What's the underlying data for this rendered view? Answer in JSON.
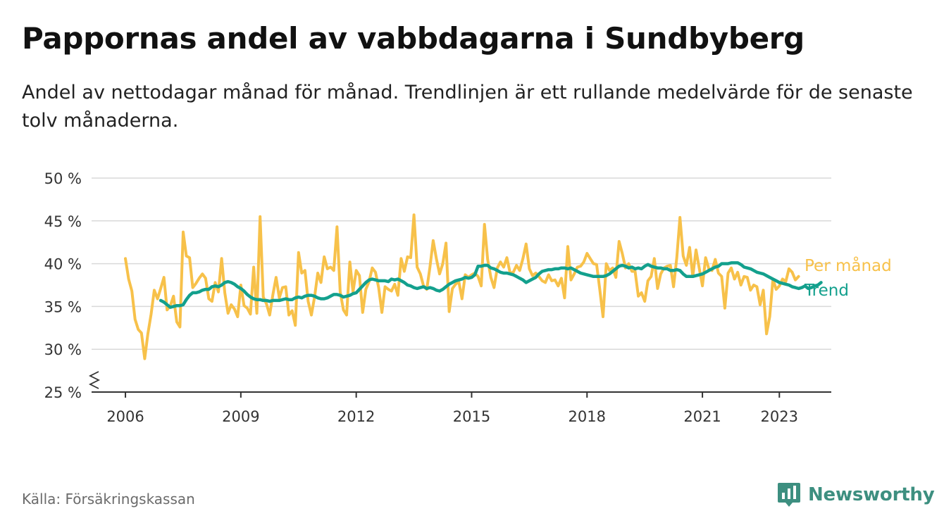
{
  "header": {
    "title": "Pappornas andel av vabbdagarna i Sundbyberg",
    "subtitle": "Andel av nettodagar månad för månad. Trendlinjen är ett rullande medelvärde för de senaste tolv månaderna."
  },
  "footer": {
    "source": "Källa: Försäkringskassan",
    "brand": "Newsworthy",
    "brand_icon": "bar-chart-badge-icon"
  },
  "colors": {
    "monthly": "#f7c14a",
    "trend": "#13a08d",
    "grid": "#d9d9d9",
    "axis": "#333333",
    "brand": "#3d8f80"
  },
  "chart_data": {
    "type": "line",
    "x_unit": "year (decimal, monthly points)",
    "ylim": [
      25,
      50
    ],
    "y_ticks": [
      25,
      30,
      35,
      40,
      45,
      50
    ],
    "y_tick_labels": [
      "25 %",
      "30 %",
      "35 %",
      "40 %",
      "45 %",
      "50 %"
    ],
    "y_axis_break": true,
    "x_ticks": [
      2006,
      2009,
      2012,
      2015,
      2018,
      2021,
      2023
    ],
    "x_tick_labels": [
      "2006",
      "2009",
      "2012",
      "2015",
      "2018",
      "2021",
      "2023"
    ],
    "xlim": [
      2005.12,
      2024.35
    ],
    "grid": "horizontal",
    "legend": "direct labels at right end of lines",
    "series": [
      {
        "name": "Per månad",
        "x_start": 2006.0,
        "x_step": 0.0833333,
        "values": [
          40.6,
          38.2,
          36.8,
          33.5,
          32.3,
          31.9,
          28.9,
          31.8,
          34.1,
          36.9,
          35.9,
          37.1,
          38.4,
          34.6,
          35.1,
          36.2,
          33.2,
          32.6,
          43.7,
          40.9,
          40.7,
          37.2,
          37.7,
          38.3,
          38.8,
          38.3,
          35.9,
          35.6,
          37.8,
          36.7,
          40.6,
          36.6,
          34.2,
          35.2,
          34.7,
          33.8,
          37.5,
          35.1,
          34.8,
          34.1,
          39.6,
          34.2,
          45.5,
          36.1,
          35.3,
          34.0,
          36.4,
          38.4,
          36.0,
          37.2,
          37.3,
          34.0,
          34.5,
          32.8,
          41.3,
          38.9,
          39.2,
          35.6,
          34.0,
          36.1,
          38.9,
          37.8,
          40.8,
          39.4,
          39.6,
          39.2,
          44.3,
          36.7,
          34.6,
          34.0,
          40.2,
          36.7,
          39.2,
          38.6,
          34.3,
          37.0,
          37.9,
          39.5,
          39.0,
          37.2,
          34.3,
          37.3,
          37.0,
          36.8,
          37.6,
          36.3,
          40.6,
          39.1,
          40.8,
          40.7,
          45.7,
          39.6,
          38.8,
          37.4,
          37.0,
          39.6,
          42.7,
          40.6,
          38.8,
          40.0,
          42.4,
          34.4,
          37.1,
          37.6,
          37.9,
          35.9,
          38.7,
          38.4,
          38.7,
          38.9,
          38.5,
          37.4,
          44.6,
          40.5,
          38.4,
          37.2,
          39.5,
          40.2,
          39.6,
          40.7,
          38.9,
          39.0,
          39.8,
          39.2,
          40.6,
          42.3,
          39.4,
          38.6,
          38.9,
          38.5,
          38.0,
          37.8,
          38.7,
          38.0,
          38.1,
          37.4,
          38.3,
          36.0,
          42.0,
          38.1,
          38.8,
          39.6,
          39.7,
          40.2,
          41.2,
          40.6,
          40.0,
          39.9,
          36.9,
          33.8,
          40.0,
          39.2,
          39.5,
          38.4,
          42.6,
          41.2,
          39.5,
          40.0,
          39.1,
          39.1,
          36.2,
          36.6,
          35.6,
          38.0,
          38.5,
          40.6,
          37.1,
          38.8,
          39.5,
          39.7,
          39.8,
          37.3,
          40.7,
          45.4,
          40.9,
          39.8,
          41.9,
          38.5,
          41.6,
          39.5,
          37.4,
          40.7,
          39.4,
          39.2,
          40.5,
          38.9,
          38.5,
          34.8,
          38.9,
          39.5,
          38.2,
          39.0,
          37.5,
          38.5,
          38.4,
          36.9,
          37.5,
          37.3,
          35.2,
          36.9,
          31.8,
          33.8,
          38.2,
          37.0,
          37.4,
          38.2,
          37.9,
          39.4,
          39.0,
          38.1,
          38.5
        ]
      },
      {
        "name": "Trend",
        "x_start": 2006.917,
        "x_step": 0.0833333,
        "values": [
          35.7,
          35.5,
          35.2,
          34.9,
          35.0,
          35.1,
          35.1,
          35.2,
          35.8,
          36.3,
          36.6,
          36.6,
          36.7,
          36.9,
          37.0,
          37.0,
          37.3,
          37.4,
          37.3,
          37.5,
          37.8,
          37.9,
          37.8,
          37.6,
          37.3,
          37.1,
          36.8,
          36.4,
          36.1,
          35.9,
          35.8,
          35.8,
          35.7,
          35.7,
          35.6,
          35.7,
          35.7,
          35.7,
          35.8,
          35.9,
          35.8,
          35.8,
          36.0,
          36.1,
          36.0,
          36.2,
          36.3,
          36.3,
          36.2,
          36.0,
          35.9,
          35.9,
          36.0,
          36.2,
          36.4,
          36.4,
          36.3,
          36.1,
          36.2,
          36.3,
          36.5,
          36.6,
          37.0,
          37.4,
          37.8,
          38.1,
          38.2,
          38.1,
          38.0,
          38.0,
          38.0,
          37.9,
          38.2,
          38.1,
          38.2,
          38.0,
          37.8,
          37.5,
          37.4,
          37.2,
          37.1,
          37.2,
          37.3,
          37.1,
          37.2,
          37.1,
          36.9,
          36.8,
          37.0,
          37.3,
          37.6,
          37.8,
          38.0,
          38.1,
          38.2,
          38.4,
          38.3,
          38.4,
          38.7,
          39.7,
          39.7,
          39.8,
          39.8,
          39.5,
          39.4,
          39.2,
          39.0,
          38.9,
          38.9,
          38.8,
          38.7,
          38.5,
          38.3,
          38.1,
          37.8,
          38.0,
          38.2,
          38.4,
          38.8,
          39.1,
          39.2,
          39.3,
          39.3,
          39.4,
          39.4,
          39.5,
          39.5,
          39.4,
          39.5,
          39.3,
          39.1,
          38.9,
          38.8,
          38.7,
          38.6,
          38.5,
          38.5,
          38.5,
          38.5,
          38.6,
          38.8,
          39.1,
          39.4,
          39.7,
          39.8,
          39.7,
          39.5,
          39.6,
          39.4,
          39.5,
          39.4,
          39.7,
          39.9,
          39.7,
          39.6,
          39.5,
          39.5,
          39.4,
          39.4,
          39.2,
          39.2,
          39.3,
          39.2,
          38.8,
          38.5,
          38.5,
          38.5,
          38.6,
          38.7,
          38.8,
          39.0,
          39.2,
          39.4,
          39.6,
          39.7,
          40.0,
          40.0,
          40.0,
          40.1,
          40.1,
          40.1,
          39.9,
          39.6,
          39.5,
          39.4,
          39.2,
          39.0,
          38.9,
          38.8,
          38.6,
          38.4,
          38.2,
          38.0,
          37.8,
          37.7,
          37.6,
          37.5,
          37.3,
          37.2,
          37.1,
          37.2,
          37.4,
          37.1,
          37.2,
          37.4,
          37.5,
          37.8
        ]
      }
    ]
  }
}
